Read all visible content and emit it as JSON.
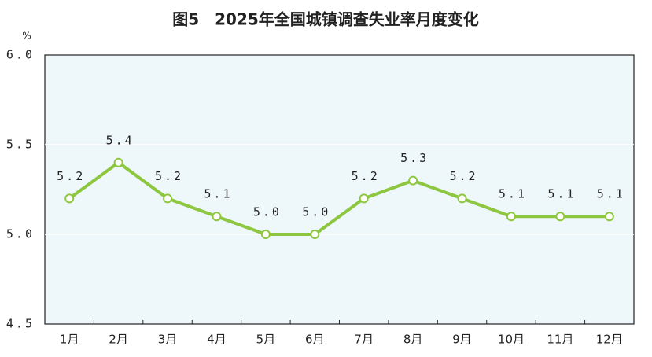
{
  "chart_data": {
    "type": "line",
    "title": "图5　2025年全国城镇调查失业率月度变化",
    "y_unit": "%",
    "categories": [
      "1月",
      "2月",
      "3月",
      "4月",
      "5月",
      "6月",
      "7月",
      "8月",
      "9月",
      "10月",
      "11月",
      "12月"
    ],
    "values": [
      5.2,
      5.4,
      5.2,
      5.1,
      5.0,
      5.0,
      5.2,
      5.3,
      5.2,
      5.1,
      5.1,
      5.1
    ],
    "value_labels": [
      "5.2",
      "5.4",
      "5.2",
      "5.1",
      "5.0",
      "5.0",
      "5.2",
      "5.3",
      "5.2",
      "5.1",
      "5.1",
      "5.1"
    ],
    "color": "#8dc63f",
    "ylim": [
      4.5,
      6.0
    ],
    "yticks": [
      4.5,
      {
        "value": 5.0,
        "label": "5.0"
      },
      5.5,
      {
        "value": 6.0,
        "label": "6.0"
      }
    ],
    "grid": true
  }
}
